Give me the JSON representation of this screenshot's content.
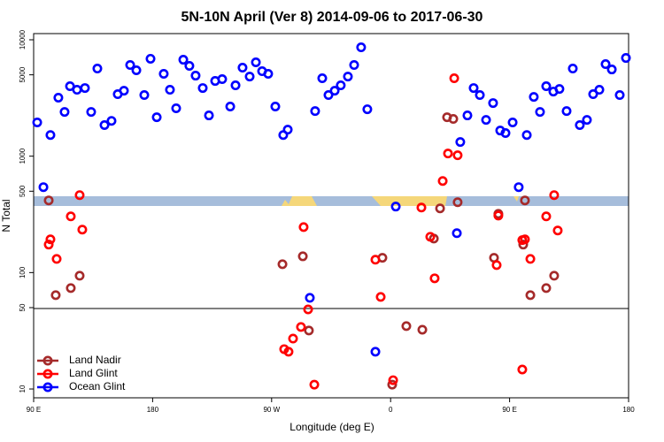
{
  "chart_data": {
    "type": "scatter",
    "title": "5N-10N April (Ver 8)   2014-09-06 to 2017-06-30",
    "x_label": "Longitude (deg E)",
    "y_label": "N Total",
    "log_y": true,
    "legend": "bottom-left",
    "xlim": [
      90,
      540
    ],
    "xticks": [
      {
        "value": 90,
        "label": "90 E"
      },
      180,
      {
        "value": 270,
        "label": "90 W"
      },
      {
        "value": 360,
        "label": "0"
      },
      {
        "value": 450,
        "label": "90 E"
      },
      {
        "value": 540,
        "label": "180"
      }
    ],
    "ylim": [
      8.4,
      11300
    ],
    "yticks": [
      10,
      50,
      100,
      500,
      1000,
      5000,
      10000
    ],
    "series": [
      {
        "name": "Land Nadir",
        "color": "#a52a2a",
        "x": [
          101.4,
          106.7,
          118.1,
          124.8,
          278.2,
          293.6,
          298.2,
          353.8,
          361.2,
          371.9,
          384.0,
          392.7,
          397.4,
          402.7,
          407.4,
          410.7,
          438.2,
          441.5,
          460.3,
          461.6,
          465.7,
          477.7,
          483.7
        ],
        "values": [
          417,
          64,
          73.6,
          94,
          118,
          138,
          31.8,
          134,
          10.9,
          34.7,
          32.3,
          196,
          356,
          2160,
          2090,
          402,
          134,
          320,
          174,
          417,
          64,
          73.6,
          94
        ]
      },
      {
        "name": "Land Glint",
        "color": "#ff0000",
        "x": [
          102.7,
          101.4,
          107.4,
          118.1,
          124.8,
          126.8,
          294.2,
          297.6,
          292.2,
          286.2,
          279.5,
          282.8,
          302.3,
          348.5,
          352.5,
          361.9,
          383.3,
          390.0,
          393.3,
          399.4,
          403.4,
          408.1,
          410.7,
          441.5,
          440.2,
          459.6,
          461.6,
          459.6,
          465.7,
          477.7,
          483.7,
          486.4
        ],
        "values": [
          193,
          174,
          131,
          304,
          463,
          234,
          246,
          48.3,
          34.1,
          27.1,
          22.0,
          20.9,
          10.9,
          129,
          61.8,
          11.9,
          362,
          203,
          89.3,
          612,
          1054,
          4670,
          1018,
          309,
          116,
          190,
          193,
          14.7,
          131,
          304,
          463,
          230
        ]
      },
      {
        "name": "Ocean Glint",
        "color": "#0000ff",
        "x": [
          92.7,
          102.7,
          108.7,
          113.4,
          117.5,
          122.8,
          128.8,
          133.5,
          138.2,
          143.6,
          148.9,
          153.6,
          158.3,
          163.0,
          167.7,
          173.7,
          178.4,
          183.1,
          188.4,
          193.1,
          197.8,
          203.2,
          207.8,
          212.5,
          217.9,
          222.6,
          227.3,
          232.6,
          238.7,
          242.7,
          248.0,
          253.4,
          258.1,
          262.8,
          267.4,
          272.8,
          278.8,
          282.2,
          302.9,
          308.3,
          313.0,
          317.7,
          322.3,
          327.7,
          332.4,
          337.7,
          342.4,
          363.9,
          410.1,
          412.7,
          418.1,
          422.8,
          427.5,
          432.2,
          437.5,
          442.9,
          446.9,
          452.3,
          456.9,
          463.0,
          468.3,
          473.0,
          477.7,
          483.1,
          487.7,
          493.1,
          497.8,
          503.1,
          508.5,
          513.2,
          517.9,
          522.6,
          527.3,
          533.3,
          538.0,
          97.4,
          298.9,
          348.5
        ],
        "values": [
          1950,
          1520,
          3180,
          2400,
          3990,
          3720,
          3850,
          2400,
          5660,
          1850,
          2010,
          3410,
          3650,
          6070,
          5470,
          3350,
          6870,
          2160,
          5100,
          3720,
          2580,
          6740,
          5970,
          4920,
          3850,
          2240,
          4430,
          4590,
          2670,
          4060,
          5760,
          4830,
          6400,
          5370,
          5100,
          2670,
          1520,
          1690,
          2440,
          4670,
          3350,
          3650,
          4060,
          4830,
          6070,
          8610,
          2530,
          369,
          218,
          1324,
          2240,
          3850,
          3350,
          2050,
          2860,
          1660,
          1580,
          1950,
          542,
          1520,
          3230,
          2400,
          3990,
          3590,
          3780,
          2440,
          5660,
          1850,
          2050,
          3410,
          3720,
          6180,
          5560,
          3350,
          6980,
          542,
          60.7,
          20.9
        ]
      }
    ]
  }
}
